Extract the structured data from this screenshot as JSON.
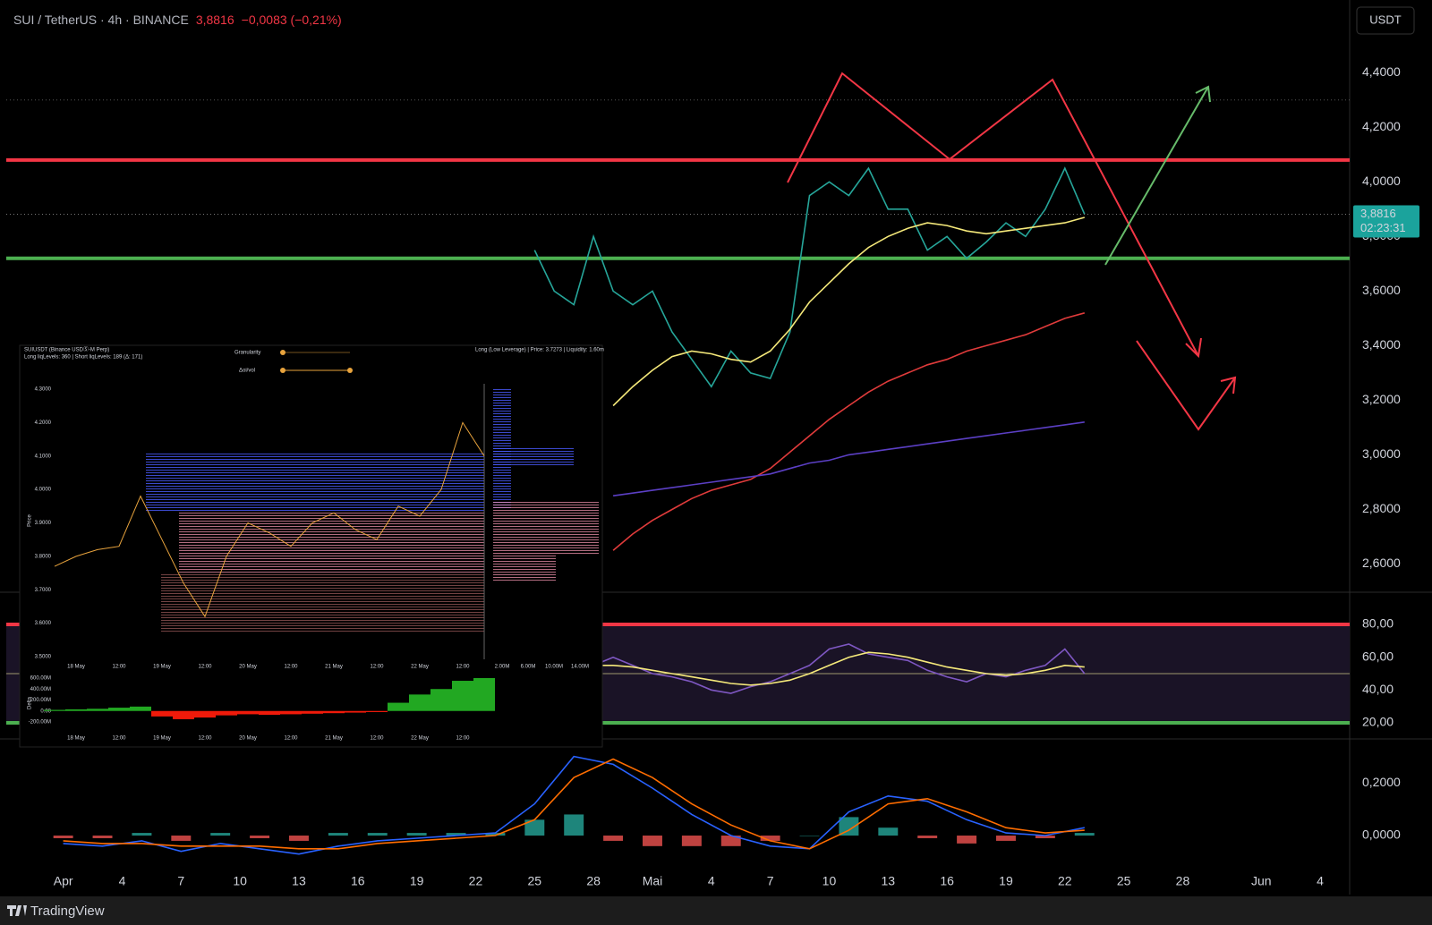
{
  "header": {
    "symbol": "SUI / TetherUS · 4h · BINANCE",
    "price": "3,8816",
    "change": "−0,0083 (−0,21%)"
  },
  "currency": "USDT",
  "brand": "TradingView",
  "inset": {
    "title": "SUIUSDT (Binance USDⓈ-M Perp)",
    "subtitle": "Long liqLevels: 360 | Short liqLevels: 189 (Δ: 171)",
    "controls": [
      "Granularity",
      "Δoi/vol"
    ],
    "tooltip": "Long (Low Leverage) | Price: 3.7273 | Liquidity: 1.60m",
    "profile_axis": [
      "2.00M",
      "6.00M",
      "10.00M",
      "14.00M"
    ],
    "price_label": "Price",
    "delta_label": "Delta"
  },
  "chart_data": [
    {
      "type": "line",
      "xlim": [
        -2.9,
        65.5
      ],
      "ylim": [
        2.5,
        4.65
      ],
      "yticks": [
        {
          "value": 4.4,
          "label": "4,4000"
        },
        {
          "value": 4.2,
          "label": "4,2000"
        },
        {
          "value": 4.0,
          "label": "4,0000"
        },
        {
          "value": 3.8,
          "label": "3,8000"
        },
        {
          "value": 3.6,
          "label": "3,6000"
        },
        {
          "value": 3.4,
          "label": "3,4000"
        },
        {
          "value": 3.2,
          "label": "3,2000"
        },
        {
          "value": 3.0,
          "label": "3,0000"
        },
        {
          "value": 2.8,
          "label": "2,8000"
        },
        {
          "value": 2.6,
          "label": "2,6000"
        }
      ],
      "x": [
        24,
        25,
        26,
        27,
        28,
        29,
        30,
        31,
        32,
        33,
        34,
        35,
        36,
        37,
        38,
        39,
        40,
        41,
        42,
        43,
        44,
        45,
        46,
        47,
        48,
        49,
        50,
        51,
        52
      ],
      "series": [
        {
          "color": "#26a69a",
          "values": [
            3.75,
            3.6,
            3.55,
            3.8,
            3.6,
            3.55,
            3.6,
            3.45,
            3.35,
            3.25,
            3.38,
            3.3,
            3.28,
            3.45,
            3.95,
            4.0,
            3.95,
            4.05,
            3.9,
            3.9,
            3.75,
            3.8,
            3.72,
            3.78,
            3.85,
            3.8,
            3.9,
            4.05,
            3.8816
          ]
        },
        {
          "color": "#f5e97a",
          "values": [
            null,
            null,
            null,
            null,
            3.18,
            3.25,
            3.31,
            3.36,
            3.38,
            3.37,
            3.35,
            3.34,
            3.38,
            3.46,
            3.56,
            3.63,
            3.7,
            3.76,
            3.8,
            3.83,
            3.85,
            3.84,
            3.82,
            3.81,
            3.82,
            3.83,
            3.84,
            3.85,
            3.87
          ]
        },
        {
          "color": "#e03b3b",
          "values": [
            null,
            null,
            null,
            null,
            2.65,
            2.71,
            2.76,
            2.8,
            2.84,
            2.87,
            2.89,
            2.91,
            2.95,
            3.01,
            3.07,
            3.13,
            3.18,
            3.23,
            3.27,
            3.3,
            3.33,
            3.35,
            3.38,
            3.4,
            3.42,
            3.44,
            3.47,
            3.5,
            3.52
          ]
        },
        {
          "color": "#5b3fc4",
          "values": [
            null,
            null,
            null,
            null,
            2.85,
            2.86,
            2.87,
            2.88,
            2.89,
            2.9,
            2.91,
            2.92,
            2.93,
            2.95,
            2.97,
            2.98,
            3.0,
            3.01,
            3.02,
            3.03,
            3.04,
            3.05,
            3.06,
            3.07,
            3.08,
            3.09,
            3.1,
            3.11,
            3.12
          ]
        }
      ],
      "levels": [
        {
          "value": 4.08,
          "color": "#f23645"
        },
        {
          "value": 3.72,
          "color": "#4caf50"
        }
      ],
      "reference_lines": [
        4.3
      ],
      "last_price": {
        "value": 3.8816,
        "label": "3,8816"
      },
      "countdown": "02:23:31"
    },
    {
      "type": "line",
      "xlim": [
        -2.9,
        65.5
      ],
      "ylim": [
        10.7,
        99.1
      ],
      "yticks": [
        {
          "value": 80,
          "label": "80,00"
        },
        {
          "value": 60,
          "label": "60,00"
        },
        {
          "value": 40,
          "label": "40,00"
        },
        {
          "value": 20,
          "label": "20,00"
        }
      ],
      "x": [
        27,
        28,
        29,
        30,
        31,
        32,
        33,
        34,
        35,
        36,
        37,
        38,
        39,
        40,
        41,
        42,
        43,
        44,
        45,
        46,
        47,
        48,
        49,
        50,
        51,
        52
      ],
      "series": [
        {
          "color": "#7e57c2",
          "values": [
            55,
            60,
            55,
            50,
            48,
            45,
            40,
            38,
            42,
            45,
            50,
            55,
            65,
            68,
            62,
            60,
            58,
            52,
            48,
            45,
            50,
            48,
            52,
            55,
            65,
            50
          ]
        },
        {
          "color": "#f5e97a",
          "values": [
            55,
            55,
            54,
            52,
            50,
            48,
            46,
            44,
            43,
            44,
            46,
            50,
            55,
            60,
            63,
            62,
            60,
            57,
            54,
            52,
            50,
            49,
            50,
            52,
            55,
            54
          ]
        }
      ],
      "levels": [
        {
          "value": 80,
          "color": "#f23645"
        },
        {
          "value": 50,
          "color": "#9e9a6e",
          "style": "thin"
        },
        {
          "value": 20,
          "color": "#4caf50"
        }
      ],
      "band_color": "#1a1326"
    },
    {
      "type": "line",
      "xlim": [
        -2.9,
        65.5
      ],
      "ylim": [
        -0.122,
        0.363
      ],
      "yticks": [
        {
          "value": 0.2,
          "label": "0,2000"
        },
        {
          "value": 0,
          "label": "0,0000"
        }
      ],
      "xticks": [
        {
          "value": 0,
          "label": "Apr"
        },
        {
          "value": 3,
          "label": "4"
        },
        {
          "value": 6,
          "label": "7"
        },
        {
          "value": 9,
          "label": "10"
        },
        {
          "value": 12,
          "label": "13"
        },
        {
          "value": 15,
          "label": "16"
        },
        {
          "value": 18,
          "label": "19"
        },
        {
          "value": 21,
          "label": "22"
        },
        {
          "value": 24,
          "label": "25"
        },
        {
          "value": 27,
          "label": "28"
        },
        {
          "value": 30,
          "label": "Mai"
        },
        {
          "value": 33,
          "label": "4"
        },
        {
          "value": 36,
          "label": "7"
        },
        {
          "value": 39,
          "label": "10"
        },
        {
          "value": 42,
          "label": "13"
        },
        {
          "value": 45,
          "label": "16"
        },
        {
          "value": 48,
          "label": "19"
        },
        {
          "value": 51,
          "label": "22"
        },
        {
          "value": 54,
          "label": "25"
        },
        {
          "value": 57,
          "label": "28"
        },
        {
          "value": 61,
          "label": "Jun"
        },
        {
          "value": 64,
          "label": "4"
        }
      ],
      "x": [
        0,
        2,
        4,
        6,
        8,
        10,
        12,
        14,
        16,
        18,
        20,
        22,
        24,
        26,
        28,
        30,
        32,
        34,
        36,
        38,
        40,
        42,
        44,
        46,
        48,
        50,
        52
      ],
      "series": [
        {
          "style": "histogram",
          "color": "#26a69a",
          "negative_color": "#ef5350",
          "values": [
            -0.01,
            -0.01,
            0.01,
            -0.02,
            0.01,
            -0.01,
            -0.02,
            0.01,
            0.01,
            0.01,
            0.01,
            0.01,
            0.06,
            0.08,
            -0.02,
            -0.04,
            -0.04,
            -0.04,
            -0.02,
            0,
            0.07,
            0.03,
            -0.01,
            -0.03,
            -0.02,
            -0.01,
            0.01
          ]
        },
        {
          "color": "#2962ff",
          "values": [
            -0.03,
            -0.04,
            -0.02,
            -0.06,
            -0.03,
            -0.05,
            -0.07,
            -0.04,
            -0.02,
            -0.01,
            0.0,
            0.01,
            0.12,
            0.3,
            0.27,
            0.18,
            0.08,
            0.0,
            -0.04,
            -0.05,
            0.09,
            0.15,
            0.13,
            0.06,
            0.01,
            0.0,
            0.03
          ]
        },
        {
          "color": "#ff6d00",
          "values": [
            -0.02,
            -0.03,
            -0.03,
            -0.04,
            -0.04,
            -0.04,
            -0.05,
            -0.05,
            -0.03,
            -0.02,
            -0.01,
            0.0,
            0.06,
            0.22,
            0.29,
            0.22,
            0.12,
            0.04,
            -0.02,
            -0.05,
            0.02,
            0.12,
            0.14,
            0.09,
            0.03,
            0.01,
            0.02
          ]
        }
      ]
    },
    {
      "type": "line",
      "ylim": [
        3.492,
        4.316
      ],
      "yticks": [
        {
          "value": 4.3,
          "label": "4.3000"
        },
        {
          "value": 4.2,
          "label": "4.2000"
        },
        {
          "value": 4.1,
          "label": "4.1000"
        },
        {
          "value": 4.0,
          "label": "4.0000"
        },
        {
          "value": 3.9,
          "label": "3.9000"
        },
        {
          "value": 3.8,
          "label": "3.8000"
        },
        {
          "value": 3.7,
          "label": "3.7000"
        },
        {
          "value": 3.6,
          "label": "3.6000"
        },
        {
          "value": 3.5,
          "label": "3.5000"
        }
      ],
      "categories": [
        null,
        "18 May",
        null,
        "12:00",
        null,
        "19 May",
        null,
        "12:00",
        null,
        "20 May",
        null,
        "12:00",
        null,
        "21 May",
        null,
        "12:00",
        null,
        "22 May",
        null,
        "12:00",
        null
      ],
      "series": [
        {
          "color": "#e8a33d",
          "values": [
            3.77,
            3.8,
            3.82,
            3.83,
            3.98,
            3.85,
            3.72,
            3.62,
            3.8,
            3.9,
            3.87,
            3.83,
            3.9,
            3.93,
            3.88,
            3.85,
            3.95,
            3.92,
            4.0,
            4.2,
            4.1
          ]
        }
      ]
    },
    {
      "type": "bar",
      "ylim": [
        -363,
        730
      ],
      "yticks": [
        {
          "value": 600,
          "label": "600.00M"
        },
        {
          "value": 400,
          "label": "400.00M"
        },
        {
          "value": 200,
          "label": "200.00M"
        },
        {
          "value": 0,
          "label": "0.00"
        },
        {
          "value": -200,
          "label": "-200.00M"
        }
      ],
      "categories": [
        null,
        "18 May",
        null,
        "12:00",
        null,
        "19 May",
        null,
        "12:00",
        null,
        "20 May",
        null,
        "12:00",
        null,
        "21 May",
        null,
        "12:00",
        null,
        "22 May",
        null,
        "12:00",
        null
      ],
      "color": "#22a822",
      "negative_color": "#f01a0a",
      "values": [
        20,
        30,
        40,
        60,
        80,
        -100,
        -150,
        -120,
        -80,
        -60,
        -70,
        -60,
        -50,
        -40,
        -30,
        -20,
        150,
        300,
        400,
        550,
        600
      ]
    }
  ]
}
